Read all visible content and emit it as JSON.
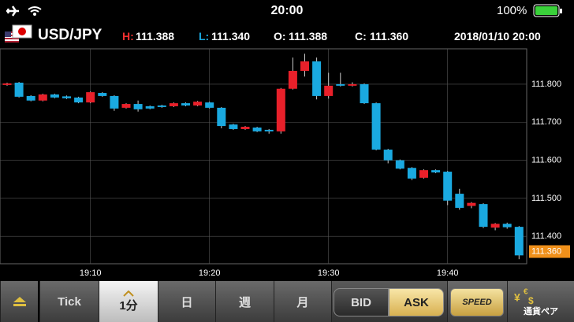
{
  "status_bar": {
    "time": "20:00",
    "battery": "100%"
  },
  "header": {
    "pair": "USD/JPY",
    "high_label": "H:",
    "high": "111.388",
    "low_label": "L:",
    "low": "111.340",
    "open_label": "O:",
    "open": "111.388",
    "close_label": "C:",
    "close": "111.360",
    "datetime": "2018/01/10 20:00"
  },
  "chart_data": {
    "type": "candlestick",
    "categories": [
      null,
      null,
      null,
      null,
      null,
      null,
      null,
      "19:10",
      null,
      null,
      null,
      null,
      null,
      null,
      null,
      null,
      null,
      "19:20",
      null,
      null,
      null,
      null,
      null,
      null,
      null,
      null,
      null,
      "19:30",
      null,
      null,
      null,
      null,
      null,
      null,
      null,
      null,
      null,
      "19:40",
      null,
      null,
      null,
      null,
      null,
      null
    ],
    "open": [
      111.798,
      111.804,
      111.769,
      111.757,
      111.773,
      111.768,
      111.765,
      111.752,
      111.777,
      111.769,
      111.738,
      111.748,
      111.742,
      111.744,
      111.742,
      111.75,
      111.744,
      111.752,
      111.738,
      111.694,
      111.682,
      111.686,
      111.68,
      111.676,
      111.788,
      111.835,
      111.86,
      111.769,
      111.8,
      111.796,
      111.8,
      111.75,
      111.628,
      111.6,
      111.58,
      111.554,
      111.574,
      111.57,
      111.512,
      111.48,
      111.485,
      111.423,
      111.433,
      111.425
    ],
    "high": [
      111.804,
      111.806,
      111.771,
      111.775,
      111.775,
      111.77,
      111.767,
      111.781,
      111.779,
      111.771,
      111.75,
      111.757,
      111.744,
      111.746,
      111.752,
      111.752,
      111.756,
      111.754,
      111.74,
      111.696,
      111.69,
      111.688,
      111.682,
      111.79,
      111.87,
      111.88,
      111.87,
      111.83,
      111.83,
      111.805,
      111.802,
      111.752,
      111.63,
      111.602,
      111.582,
      111.576,
      111.576,
      111.572,
      111.525,
      111.49,
      111.487,
      111.435,
      111.436,
      111.427
    ],
    "low": [
      111.796,
      111.765,
      111.755,
      111.755,
      111.763,
      111.761,
      111.75,
      111.75,
      111.767,
      111.73,
      111.736,
      111.728,
      111.734,
      111.738,
      111.74,
      111.742,
      111.742,
      111.736,
      111.684,
      111.68,
      111.68,
      111.674,
      111.67,
      111.67,
      111.786,
      111.82,
      111.76,
      111.762,
      111.794,
      111.794,
      111.748,
      111.626,
      111.592,
      111.576,
      111.548,
      111.552,
      111.566,
      111.482,
      111.47,
      111.474,
      111.422,
      111.416,
      111.42,
      111.34
    ],
    "close": [
      111.802,
      111.767,
      111.757,
      111.773,
      111.765,
      111.763,
      111.752,
      111.779,
      111.769,
      111.736,
      111.748,
      111.734,
      111.736,
      111.74,
      111.75,
      111.744,
      111.754,
      111.738,
      111.69,
      111.682,
      111.688,
      111.676,
      111.676,
      111.788,
      111.835,
      111.86,
      111.769,
      111.796,
      111.796,
      111.8,
      111.75,
      111.628,
      111.6,
      111.578,
      111.552,
      111.574,
      111.568,
      111.494,
      111.475,
      111.488,
      111.425,
      111.433,
      111.424,
      111.35
    ],
    "up_color": "#e8202a",
    "down_color": "#1aa9e0",
    "ylim": [
      111.328,
      111.893
    ],
    "yticks": [
      {
        "value": 111.8,
        "label": "111.800"
      },
      {
        "value": 111.7,
        "label": "111.700"
      },
      {
        "value": 111.6,
        "label": "111.600"
      },
      {
        "value": 111.5,
        "label": "111.500"
      },
      {
        "value": 111.4,
        "label": "111.400"
      }
    ],
    "last_price": {
      "value": 111.36,
      "label": "111.360"
    },
    "grid": true
  },
  "toolbar": {
    "timeframes": [
      "Tick",
      "1分",
      "日",
      "週",
      "月"
    ],
    "bid": "BID",
    "ask": "ASK",
    "speed": "SPEED",
    "pair_button": "通貨ペア"
  }
}
